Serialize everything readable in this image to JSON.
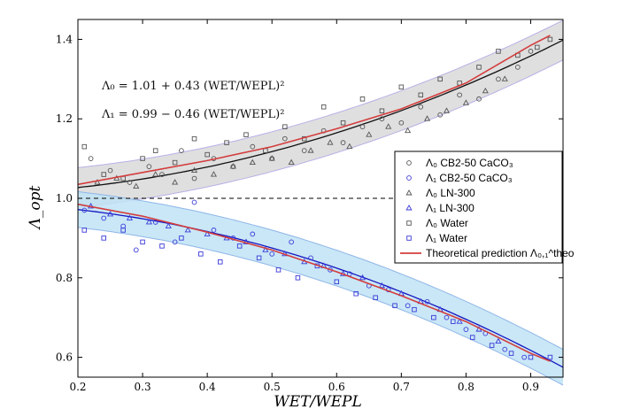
{
  "chart_data": {
    "type": "scatter",
    "title": "",
    "xlabel": "WET/WEPL",
    "ylabel": "Λ_opt",
    "xlim": [
      0.2,
      0.95
    ],
    "ylim": [
      0.55,
      1.45
    ],
    "xticks": [
      "0.2",
      "0.3",
      "0.4",
      "0.5",
      "0.6",
      "0.7",
      "0.8",
      "0.9"
    ],
    "yticks": [
      "0.6",
      "0.8",
      "1.0",
      "1.2",
      "1.4"
    ],
    "reference_line": 1.0,
    "annotations": [
      "Λ₀ = 1.01 + 0.43 (WET/WEPL)²",
      "Λ₁ = 0.99 − 0.46 (WET/WEPL)²"
    ],
    "legend_position": "right",
    "legend": [
      {
        "label": "Λ₀ CB2-50 CaCO₃",
        "marker": "circle",
        "color": "#555555"
      },
      {
        "label": "Λ₁ CB2-50 CaCO₃",
        "marker": "circle",
        "color": "#3a3ad8"
      },
      {
        "label": "Λ₀ LN-300",
        "marker": "triangle",
        "color": "#555555"
      },
      {
        "label": "Λ₁ LN-300",
        "marker": "triangle",
        "color": "#3a3ad8"
      },
      {
        "label": "Λ₀ Water",
        "marker": "square",
        "color": "#555555"
      },
      {
        "label": "Λ₁ Water",
        "marker": "square",
        "color": "#3a3ad8"
      },
      {
        "label": "Theoretical prediction Λ₀,₁^theo",
        "marker": "line",
        "color": "#d33d3d"
      }
    ],
    "fits": [
      {
        "name": "Λ₀ fit",
        "a": 1.01,
        "b": 0.43,
        "color": "#111111"
      },
      {
        "name": "Λ₁ fit",
        "a": 0.99,
        "b": -0.46,
        "color": "#1515c0"
      }
    ],
    "bands": [
      {
        "name": "Λ₀ band",
        "halfwidth": 0.05,
        "fill": "#d9d9d9",
        "edge": "#b7b0e6"
      },
      {
        "name": "Λ₁ band",
        "halfwidth": 0.045,
        "fill": "#bfe3f4",
        "edge": "#8fb6e8"
      }
    ],
    "theoretical": [
      {
        "name": "Λ₀ theo",
        "x": [
          0.2,
          0.3,
          0.4,
          0.5,
          0.6,
          0.7,
          0.8,
          0.9,
          0.93
        ],
        "y": [
          1.035,
          1.065,
          1.095,
          1.13,
          1.175,
          1.225,
          1.29,
          1.385,
          1.41
        ]
      },
      {
        "name": "Λ₁ theo",
        "x": [
          0.2,
          0.3,
          0.4,
          0.5,
          0.6,
          0.7,
          0.8,
          0.9,
          0.93
        ],
        "y": [
          0.985,
          0.955,
          0.915,
          0.87,
          0.815,
          0.755,
          0.69,
          0.61,
          0.59
        ]
      }
    ],
    "series": [
      {
        "name": "Λ₀ CB2-50 CaCO₃",
        "marker": "circle",
        "color": "#555555",
        "x": [
          0.22,
          0.25,
          0.28,
          0.31,
          0.33,
          0.36,
          0.38,
          0.41,
          0.44,
          0.47,
          0.5,
          0.52,
          0.55,
          0.58,
          0.61,
          0.64,
          0.67,
          0.7,
          0.73,
          0.76,
          0.79,
          0.82,
          0.85,
          0.88,
          0.9
        ],
        "y": [
          1.1,
          1.07,
          1.04,
          1.08,
          1.06,
          1.12,
          1.05,
          1.1,
          1.08,
          1.13,
          1.1,
          1.15,
          1.12,
          1.17,
          1.14,
          1.18,
          1.2,
          1.19,
          1.23,
          1.21,
          1.26,
          1.25,
          1.3,
          1.33,
          1.37
        ]
      },
      {
        "name": "Λ₁ CB2-50 CaCO₃",
        "marker": "circle",
        "color": "#3a3ad8",
        "x": [
          0.21,
          0.24,
          0.27,
          0.29,
          0.32,
          0.35,
          0.38,
          0.41,
          0.44,
          0.47,
          0.5,
          0.53,
          0.56,
          0.59,
          0.62,
          0.65,
          0.68,
          0.71,
          0.74,
          0.77,
          0.8,
          0.83,
          0.86,
          0.89
        ],
        "y": [
          0.97,
          0.95,
          0.93,
          0.87,
          0.94,
          0.89,
          0.99,
          0.92,
          0.9,
          0.91,
          0.86,
          0.89,
          0.85,
          0.82,
          0.81,
          0.78,
          0.77,
          0.73,
          0.74,
          0.7,
          0.67,
          0.66,
          0.62,
          0.6
        ]
      },
      {
        "name": "Λ₀ LN-300",
        "marker": "triangle",
        "color": "#555555",
        "x": [
          0.23,
          0.26,
          0.29,
          0.32,
          0.35,
          0.38,
          0.41,
          0.44,
          0.47,
          0.5,
          0.53,
          0.56,
          0.59,
          0.62,
          0.65,
          0.68,
          0.71,
          0.74,
          0.77,
          0.8,
          0.83,
          0.86
        ],
        "y": [
          1.04,
          1.05,
          1.03,
          1.06,
          1.04,
          1.07,
          1.06,
          1.08,
          1.09,
          1.1,
          1.09,
          1.12,
          1.14,
          1.13,
          1.16,
          1.18,
          1.17,
          1.2,
          1.22,
          1.24,
          1.27,
          1.3
        ]
      },
      {
        "name": "Λ₁ LN-300",
        "marker": "triangle",
        "color": "#3a3ad8",
        "x": [
          0.22,
          0.25,
          0.28,
          0.31,
          0.34,
          0.37,
          0.4,
          0.43,
          0.46,
          0.49,
          0.52,
          0.55,
          0.58,
          0.61,
          0.64,
          0.67,
          0.7,
          0.73,
          0.76,
          0.79,
          0.82,
          0.85
        ],
        "y": [
          0.98,
          0.96,
          0.95,
          0.94,
          0.93,
          0.92,
          0.91,
          0.9,
          0.89,
          0.87,
          0.86,
          0.84,
          0.83,
          0.81,
          0.8,
          0.78,
          0.76,
          0.74,
          0.72,
          0.69,
          0.67,
          0.64
        ]
      },
      {
        "name": "Λ₀ Water",
        "marker": "square",
        "color": "#555555",
        "x": [
          0.21,
          0.24,
          0.27,
          0.3,
          0.32,
          0.35,
          0.38,
          0.4,
          0.43,
          0.46,
          0.49,
          0.52,
          0.55,
          0.58,
          0.61,
          0.64,
          0.67,
          0.7,
          0.73,
          0.76,
          0.79,
          0.82,
          0.85,
          0.88,
          0.91,
          0.93
        ],
        "y": [
          1.13,
          1.06,
          1.05,
          1.1,
          1.12,
          1.09,
          1.15,
          1.11,
          1.14,
          1.16,
          1.12,
          1.18,
          1.15,
          1.23,
          1.19,
          1.25,
          1.22,
          1.28,
          1.26,
          1.3,
          1.29,
          1.33,
          1.37,
          1.36,
          1.38,
          1.4
        ]
      },
      {
        "name": "Λ₁ Water",
        "marker": "square",
        "color": "#3a3ad8",
        "x": [
          0.21,
          0.24,
          0.27,
          0.3,
          0.33,
          0.36,
          0.39,
          0.42,
          0.45,
          0.48,
          0.51,
          0.54,
          0.57,
          0.6,
          0.63,
          0.66,
          0.69,
          0.72,
          0.75,
          0.78,
          0.81,
          0.84,
          0.87,
          0.9,
          0.93
        ],
        "y": [
          0.92,
          0.9,
          0.92,
          0.89,
          0.88,
          0.9,
          0.86,
          0.84,
          0.88,
          0.85,
          0.82,
          0.8,
          0.83,
          0.79,
          0.76,
          0.75,
          0.73,
          0.72,
          0.7,
          0.69,
          0.65,
          0.63,
          0.61,
          0.6,
          0.6
        ]
      }
    ]
  }
}
